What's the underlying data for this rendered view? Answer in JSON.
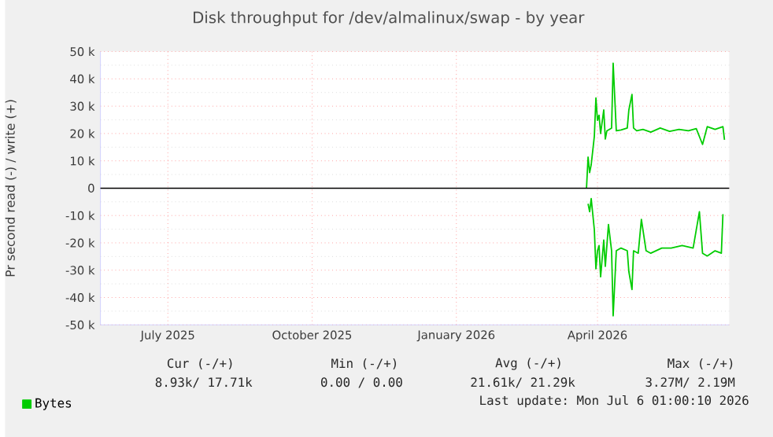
{
  "chart_data": {
    "type": "line",
    "title": "Disk throughput for /dev/almalinux/swap - by year",
    "ylabel": "Pr second read (-) / write (+)",
    "x": [
      "2026-04-08",
      "2026-04-09",
      "2026-04-10",
      "2026-04-11",
      "2026-04-13",
      "2026-04-14",
      "2026-04-15",
      "2026-04-16",
      "2026-04-17",
      "2026-04-19",
      "2026-04-20",
      "2026-04-21",
      "2026-04-24",
      "2026-04-25",
      "2026-04-27",
      "2026-04-30",
      "2026-05-04",
      "2026-05-05",
      "2026-05-07",
      "2026-05-08",
      "2026-05-10",
      "2026-05-14",
      "2026-05-19",
      "2026-05-25",
      "2026-05-31",
      "2026-06-06",
      "2026-06-12",
      "2026-06-17",
      "2026-06-21",
      "2026-06-24",
      "2026-06-29",
      "2026-07-04",
      "2026-07-05"
    ],
    "series": [
      {
        "name": "Bytes",
        "color": "#00cc00",
        "values": [
          0,
          11400,
          5700,
          8600,
          19000,
          33000,
          24800,
          26700,
          20000,
          28600,
          18000,
          21000,
          22000,
          45700,
          21000,
          21300,
          22000,
          28600,
          34300,
          22000,
          21000,
          21500,
          20500,
          22000,
          20800,
          21500,
          21000,
          21800,
          16000,
          22500,
          21500,
          22500,
          17700
        ]
      },
      {
        "color": "#00cc00",
        "x": [
          "2026-04-09",
          "2026-04-10",
          "2026-04-11",
          "2026-04-13",
          "2026-04-14",
          "2026-04-15",
          "2026-04-16",
          "2026-04-17",
          "2026-04-19",
          "2026-04-20",
          "2026-04-22",
          "2026-04-24",
          "2026-04-25",
          "2026-04-27",
          "2026-04-30",
          "2026-05-04",
          "2026-05-05",
          "2026-05-07",
          "2026-05-08",
          "2026-05-11",
          "2026-05-13",
          "2026-05-16",
          "2026-05-19",
          "2026-05-26",
          "2026-06-01",
          "2026-06-08",
          "2026-06-15",
          "2026-06-19",
          "2026-06-21",
          "2026-06-24",
          "2026-06-29",
          "2026-07-03",
          "2026-07-04"
        ],
        "values": [
          -5700,
          -8600,
          -3800,
          -15200,
          -29500,
          -22900,
          -21000,
          -32400,
          -19000,
          -28600,
          -13300,
          -22900,
          -46700,
          -22900,
          -21900,
          -22900,
          -30500,
          -37100,
          -22900,
          -23800,
          -11400,
          -22900,
          -23800,
          -21900,
          -21900,
          -21000,
          -21900,
          -8600,
          -23800,
          -24800,
          -22900,
          -23800,
          -9500
        ]
      }
    ],
    "xlim": [
      "2025-06-02",
      "2026-07-08"
    ],
    "xticks": [
      {
        "value": "2025-07-15",
        "label": "July 2025"
      },
      {
        "value": "2025-10-15",
        "label": "October 2025"
      },
      {
        "value": "2026-01-15",
        "label": "January 2026"
      },
      {
        "value": "2026-04-15",
        "label": "April 2026"
      }
    ],
    "ylim": [
      -50000,
      50000
    ],
    "yticks": [
      {
        "value": -50000,
        "label": "-50 k"
      },
      {
        "value": -40000,
        "label": "-40 k"
      },
      {
        "value": -30000,
        "label": "-30 k"
      },
      {
        "value": -20000,
        "label": "-20 k"
      },
      {
        "value": -10000,
        "label": "-10 k"
      },
      0,
      {
        "value": 10000,
        "label": "10 k"
      },
      {
        "value": 20000,
        "label": "20 k"
      },
      {
        "value": 30000,
        "label": "30 k"
      },
      {
        "value": 40000,
        "label": "40 k"
      },
      {
        "value": 50000,
        "label": "50 k"
      }
    ],
    "ref_lines": [
      {
        "axis": "y",
        "value": 0,
        "color": "#000000"
      }
    ],
    "grid": true,
    "legend": "bottom left",
    "marker": "none",
    "line_style": "solid",
    "annotations": [
      "Cur (-/+)",
      "Min (-/+)",
      "Avg (-/+)",
      "Max (-/+)",
      "8.93k/ 17.71k",
      "0.00 /  0.00",
      "21.61k/ 21.29k",
      "3.27M/  2.19M",
      "Last update: Mon Jul  6 01:00:10 2026"
    ]
  }
}
